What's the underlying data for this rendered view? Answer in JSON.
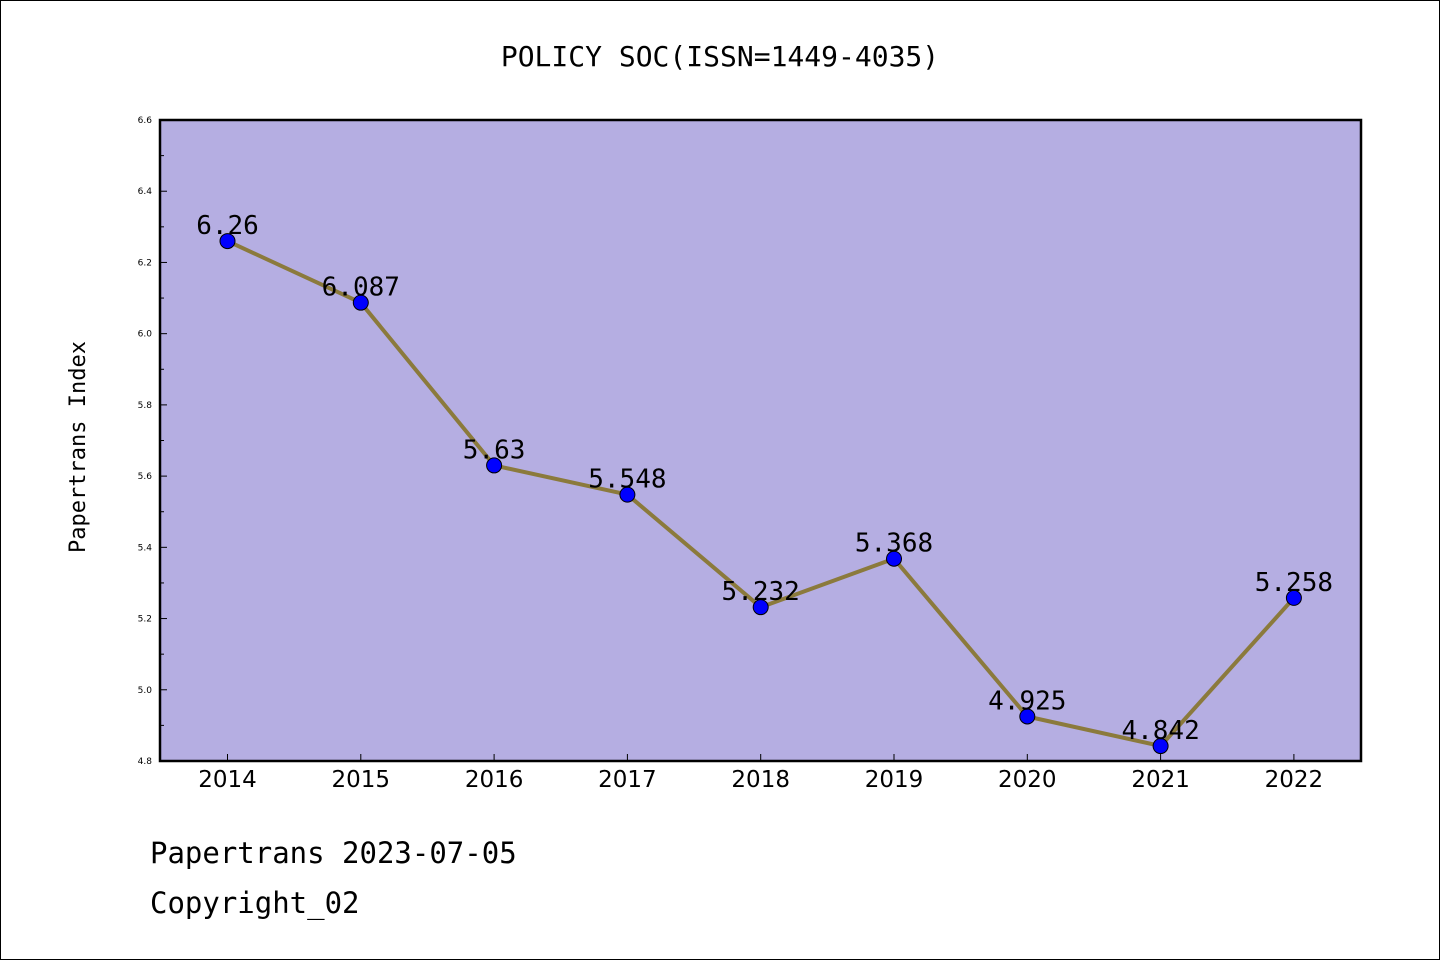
{
  "chart_data": {
    "type": "line",
    "title": "POLICY SOC(ISSN=1449-4035)",
    "ylabel": "Papertrans Index",
    "xlabel": "",
    "categories": [
      "2014",
      "2015",
      "2016",
      "2017",
      "2018",
      "2019",
      "2020",
      "2021",
      "2022"
    ],
    "values": [
      6.26,
      6.087,
      5.63,
      5.548,
      5.232,
      5.368,
      4.925,
      4.842,
      5.258
    ],
    "data_labels": [
      "6.26",
      "6.087",
      "5.63",
      "5.548",
      "5.232",
      "5.368",
      "4.925",
      "4.842",
      "5.258"
    ],
    "ylim": [
      4.8,
      6.6
    ],
    "yticks": [
      "4.8",
      "5.0",
      "5.2",
      "5.4",
      "5.6",
      "5.8",
      "6.0",
      "6.2",
      "6.4",
      "6.6"
    ],
    "grid": false,
    "colors": {
      "plot_background": "#b5aee2",
      "line": "#8b7a3c",
      "marker": "#0000ff"
    }
  },
  "footer": {
    "line1": "Papertrans 2023-07-05",
    "line2": "Copyright_02"
  }
}
